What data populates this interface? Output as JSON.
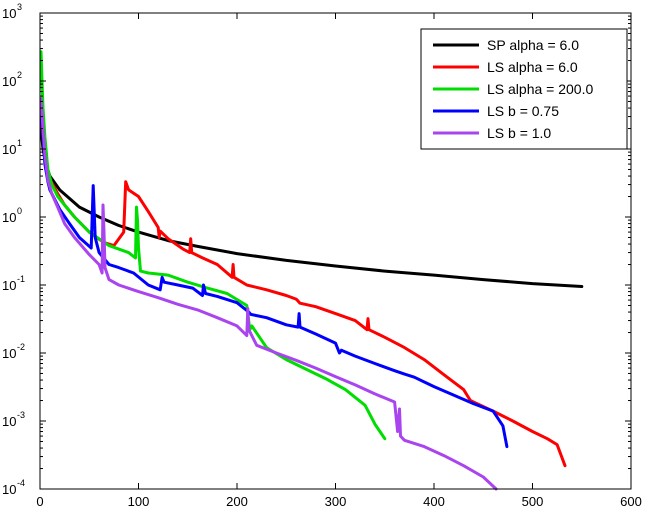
{
  "chart_data": {
    "type": "line",
    "title": "",
    "xlabel": "",
    "ylabel": "",
    "xlim": [
      0,
      600
    ],
    "ylim": [
      0.0001,
      1000
    ],
    "y_scale": "log",
    "grid": false,
    "legend_position": "top-right",
    "x_ticks": [
      0,
      100,
      200,
      300,
      400,
      500,
      600
    ],
    "y_ticks": [
      {
        "value": 0.0001,
        "base": "10",
        "exp": "-4"
      },
      {
        "value": 0.001,
        "base": "10",
        "exp": "-3"
      },
      {
        "value": 0.01,
        "base": "10",
        "exp": "-2"
      },
      {
        "value": 0.1,
        "base": "10",
        "exp": "-1"
      },
      {
        "value": 1,
        "base": "10",
        "exp": "0"
      },
      {
        "value": 10,
        "base": "10",
        "exp": "1"
      },
      {
        "value": 100,
        "base": "10",
        "exp": "2"
      },
      {
        "value": 1000,
        "base": "10",
        "exp": "3"
      }
    ],
    "series": [
      {
        "name": "SP alpha = 6.0",
        "color": "#000000",
        "points": [
          [
            1,
            20
          ],
          [
            3,
            10
          ],
          [
            6,
            6
          ],
          [
            10,
            4
          ],
          [
            20,
            2.5
          ],
          [
            40,
            1.4
          ],
          [
            60,
            1.0
          ],
          [
            80,
            0.75
          ],
          [
            100,
            0.6
          ],
          [
            130,
            0.45
          ],
          [
            160,
            0.37
          ],
          [
            200,
            0.29
          ],
          [
            250,
            0.23
          ],
          [
            300,
            0.19
          ],
          [
            350,
            0.16
          ],
          [
            400,
            0.14
          ],
          [
            450,
            0.12
          ],
          [
            500,
            0.105
          ],
          [
            550,
            0.095
          ]
        ]
      },
      {
        "name": "LS alpha = 6.0",
        "color": "#ff0000",
        "points": [
          [
            1,
            30
          ],
          [
            3,
            15
          ],
          [
            5,
            8
          ],
          [
            8,
            4
          ],
          [
            12,
            3.2
          ],
          [
            18,
            2.2
          ],
          [
            25,
            1.5
          ],
          [
            35,
            1.0
          ],
          [
            50,
            0.6
          ],
          [
            65,
            0.42
          ],
          [
            75,
            0.38
          ],
          [
            85,
            0.6
          ],
          [
            87,
            3.3
          ],
          [
            90,
            2.5
          ],
          [
            100,
            2.0
          ],
          [
            110,
            1.2
          ],
          [
            120,
            0.7
          ],
          [
            121,
            0.5
          ],
          [
            122,
            0.62
          ],
          [
            130,
            0.48
          ],
          [
            145,
            0.34
          ],
          [
            152,
            0.3
          ],
          [
            153,
            0.48
          ],
          [
            154,
            0.3
          ],
          [
            165,
            0.25
          ],
          [
            180,
            0.2
          ],
          [
            195,
            0.13
          ],
          [
            196,
            0.2
          ],
          [
            197,
            0.13
          ],
          [
            210,
            0.1
          ],
          [
            230,
            0.085
          ],
          [
            250,
            0.07
          ],
          [
            260,
            0.062
          ],
          [
            262,
            0.058
          ],
          [
            264,
            0.054
          ],
          [
            280,
            0.048
          ],
          [
            300,
            0.038
          ],
          [
            320,
            0.03
          ],
          [
            332,
            0.022
          ],
          [
            333,
            0.032
          ],
          [
            334,
            0.022
          ],
          [
            350,
            0.017
          ],
          [
            370,
            0.012
          ],
          [
            390,
            0.008
          ],
          [
            410,
            0.0048
          ],
          [
            430,
            0.0029
          ],
          [
            437,
            0.002
          ],
          [
            440,
            0.0019
          ],
          [
            460,
            0.0014
          ],
          [
            480,
            0.001
          ],
          [
            500,
            0.0007
          ],
          [
            515,
            0.00055
          ],
          [
            525,
            0.00045
          ],
          [
            533,
            0.00022
          ]
        ]
      },
      {
        "name": "LS alpha = 200.0",
        "color": "#00dd00",
        "points": [
          [
            1,
            270
          ],
          [
            2,
            100
          ],
          [
            3,
            40
          ],
          [
            5,
            15
          ],
          [
            8,
            5
          ],
          [
            12,
            3.0
          ],
          [
            18,
            2.0
          ],
          [
            25,
            1.5
          ],
          [
            35,
            1.0
          ],
          [
            50,
            0.6
          ],
          [
            70,
            0.38
          ],
          [
            90,
            0.3
          ],
          [
            97,
            0.25
          ],
          [
            98,
            1.4
          ],
          [
            99,
            0.9
          ],
          [
            100,
            0.35
          ],
          [
            102,
            0.16
          ],
          [
            110,
            0.15
          ],
          [
            130,
            0.14
          ],
          [
            150,
            0.11
          ],
          [
            170,
            0.09
          ],
          [
            190,
            0.075
          ],
          [
            210,
            0.05
          ],
          [
            213,
            0.022
          ],
          [
            215,
            0.025
          ],
          [
            230,
            0.012
          ],
          [
            250,
            0.008
          ],
          [
            270,
            0.0058
          ],
          [
            290,
            0.0042
          ],
          [
            310,
            0.0029
          ],
          [
            330,
            0.0017
          ],
          [
            340,
            0.0009
          ],
          [
            350,
            0.00055
          ]
        ]
      },
      {
        "name": "LS b = 0.75",
        "color": "#0000ff",
        "points": [
          [
            1,
            40
          ],
          [
            3,
            15
          ],
          [
            5,
            6
          ],
          [
            8,
            3.3
          ],
          [
            10,
            2.5
          ],
          [
            15,
            1.8
          ],
          [
            20,
            1.3
          ],
          [
            30,
            0.8
          ],
          [
            40,
            0.5
          ],
          [
            52,
            0.35
          ],
          [
            54,
            2.9
          ],
          [
            56,
            0.5
          ],
          [
            60,
            0.3
          ],
          [
            70,
            0.2
          ],
          [
            80,
            0.18
          ],
          [
            95,
            0.15
          ],
          [
            110,
            0.1
          ],
          [
            122,
            0.085
          ],
          [
            124,
            0.13
          ],
          [
            126,
            0.11
          ],
          [
            140,
            0.1
          ],
          [
            155,
            0.09
          ],
          [
            165,
            0.07
          ],
          [
            166,
            0.1
          ],
          [
            168,
            0.075
          ],
          [
            180,
            0.068
          ],
          [
            200,
            0.055
          ],
          [
            212,
            0.04
          ],
          [
            214,
            0.037
          ],
          [
            230,
            0.033
          ],
          [
            250,
            0.026
          ],
          [
            262,
            0.024
          ],
          [
            263,
            0.038
          ],
          [
            264,
            0.024
          ],
          [
            280,
            0.019
          ],
          [
            300,
            0.014
          ],
          [
            304,
            0.01
          ],
          [
            306,
            0.011
          ],
          [
            320,
            0.009
          ],
          [
            340,
            0.007
          ],
          [
            360,
            0.0055
          ],
          [
            370,
            0.0049
          ],
          [
            380,
            0.0044
          ],
          [
            400,
            0.0032
          ],
          [
            420,
            0.0024
          ],
          [
            440,
            0.0018
          ],
          [
            460,
            0.0014
          ],
          [
            470,
            0.00085
          ],
          [
            474,
            0.00042
          ]
        ]
      },
      {
        "name": "LS b = 1.0",
        "color": "#aa44ee",
        "points": [
          [
            1,
            55
          ],
          [
            3,
            20
          ],
          [
            5,
            8
          ],
          [
            8,
            3.5
          ],
          [
            12,
            2.2
          ],
          [
            18,
            1.4
          ],
          [
            25,
            0.8
          ],
          [
            35,
            0.5
          ],
          [
            50,
            0.28
          ],
          [
            60,
            0.2
          ],
          [
            63,
            0.15
          ],
          [
            64,
            1.5
          ],
          [
            65,
            0.6
          ],
          [
            66,
            0.18
          ],
          [
            70,
            0.12
          ],
          [
            80,
            0.1
          ],
          [
            100,
            0.08
          ],
          [
            120,
            0.065
          ],
          [
            140,
            0.052
          ],
          [
            160,
            0.043
          ],
          [
            180,
            0.033
          ],
          [
            200,
            0.025
          ],
          [
            210,
            0.018
          ],
          [
            211,
            0.045
          ],
          [
            212,
            0.022
          ],
          [
            220,
            0.013
          ],
          [
            240,
            0.01
          ],
          [
            260,
            0.0078
          ],
          [
            280,
            0.006
          ],
          [
            300,
            0.0045
          ],
          [
            320,
            0.0034
          ],
          [
            340,
            0.0025
          ],
          [
            360,
            0.0019
          ],
          [
            363,
            0.0007
          ],
          [
            365,
            0.0015
          ],
          [
            366,
            0.0006
          ],
          [
            370,
            0.00052
          ],
          [
            390,
            0.00042
          ],
          [
            410,
            0.00031
          ],
          [
            430,
            0.00022
          ],
          [
            450,
            0.00015
          ],
          [
            463,
            0.0001
          ]
        ]
      }
    ]
  }
}
